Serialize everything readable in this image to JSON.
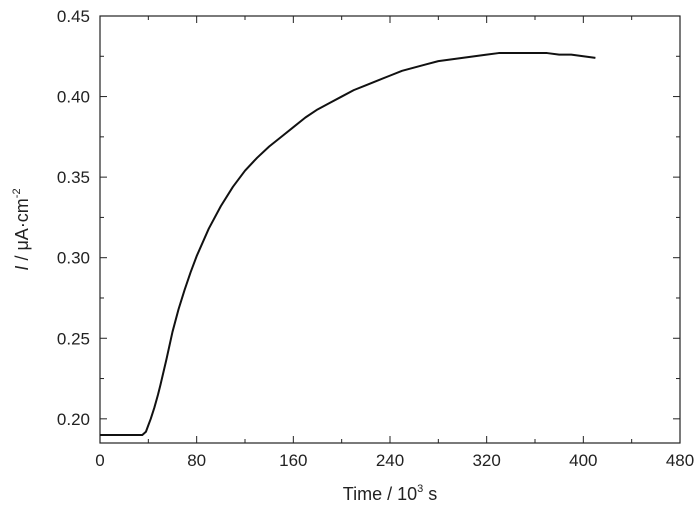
{
  "chart_data": {
    "type": "line",
    "title": "",
    "xlabel": {
      "main": "Time / 10",
      "sup": "3",
      "unit": " s"
    },
    "ylabel": {
      "symbol": "I",
      "main": " / μA·cm",
      "sup": "-2"
    },
    "xlim": [
      0,
      480
    ],
    "ylim": [
      0.185,
      0.45
    ],
    "x_ticks": [
      0,
      80,
      160,
      240,
      320,
      400,
      480
    ],
    "x_tick_labels": [
      "0",
      "80",
      "160",
      "240",
      "320",
      "400",
      "480"
    ],
    "x_minor_step": 40,
    "y_ticks": [
      0.2,
      0.25,
      0.3,
      0.35,
      0.4,
      0.45
    ],
    "y_tick_labels": [
      "0.20",
      "0.25",
      "0.30",
      "0.35",
      "0.40",
      "0.45"
    ],
    "y_minor_step": 0.025,
    "grid": false,
    "legend": "none",
    "series": [
      {
        "color": "#111111",
        "x": [
          0,
          10,
          20,
          30,
          35,
          38,
          40,
          42,
          45,
          48,
          50,
          55,
          60,
          65,
          70,
          75,
          80,
          90,
          100,
          110,
          120,
          130,
          140,
          150,
          160,
          170,
          180,
          190,
          200,
          210,
          220,
          230,
          240,
          250,
          260,
          270,
          280,
          290,
          300,
          310,
          320,
          330,
          340,
          350,
          360,
          370,
          380,
          390,
          400,
          410
        ],
        "y": [
          0.19,
          0.19,
          0.19,
          0.19,
          0.19,
          0.192,
          0.196,
          0.2,
          0.207,
          0.215,
          0.221,
          0.237,
          0.254,
          0.268,
          0.28,
          0.291,
          0.301,
          0.318,
          0.332,
          0.344,
          0.354,
          0.362,
          0.369,
          0.375,
          0.381,
          0.387,
          0.392,
          0.396,
          0.4,
          0.404,
          0.407,
          0.41,
          0.413,
          0.416,
          0.418,
          0.42,
          0.422,
          0.423,
          0.424,
          0.425,
          0.426,
          0.427,
          0.427,
          0.427,
          0.427,
          0.427,
          0.426,
          0.426,
          0.425,
          0.424
        ]
      }
    ]
  }
}
